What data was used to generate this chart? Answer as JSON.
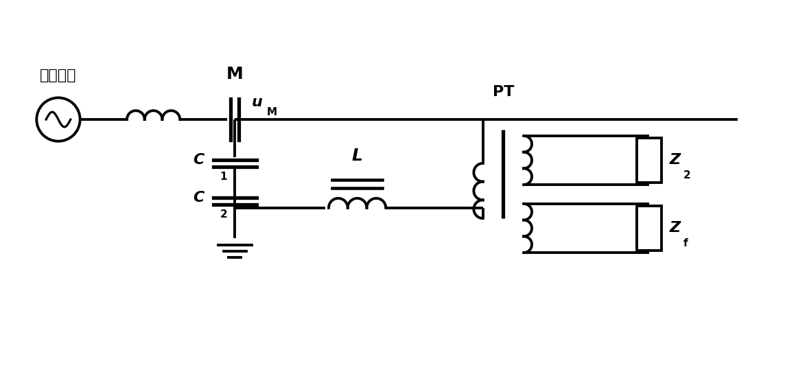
{
  "bg_color": "#ffffff",
  "line_color": "#000000",
  "lw": 2.8,
  "figsize": [
    11.6,
    5.58
  ],
  "dpi": 100,
  "labels": {
    "source_label": "电网等值",
    "M_label": "M",
    "uM_label": "u",
    "uM_sub": "M",
    "C1_label": "C",
    "C1_sub": "1",
    "C2_label": "C",
    "C2_sub": "2",
    "L_label": "L",
    "PT_label": "PT",
    "Z2_label": "Z",
    "Z2_sub": "2",
    "Zf_label": "Z",
    "Zf_sub": "f"
  }
}
